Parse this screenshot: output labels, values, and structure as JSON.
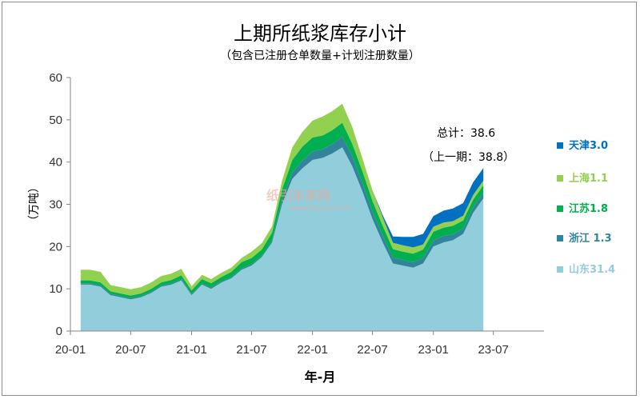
{
  "chart_data": {
    "type": "area",
    "stacked": true,
    "title": "上期所纸浆库存小计",
    "subtitle": "（包含已注册仓单数量+计划注册数量）",
    "xlabel": "年-月",
    "ylabel": "（万吨）",
    "ylim": [
      0,
      60
    ],
    "yticks": [
      0,
      10,
      20,
      30,
      40,
      50,
      60
    ],
    "xticks": [
      "20-01",
      "20-07",
      "21-01",
      "21-07",
      "22-01",
      "22-07",
      "23-01",
      "23-07"
    ],
    "grid": false,
    "legend_position": "right",
    "annotations": [
      "总计：38.6",
      "（上一期：38.8）"
    ],
    "watermark": "纸引未来网 www.51zywl.com",
    "x": [
      "2020-02",
      "2020-03",
      "2020-04",
      "2020-05",
      "2020-06",
      "2020-07",
      "2020-08",
      "2020-09",
      "2020-10",
      "2020-11",
      "2020-12",
      "2021-01",
      "2021-02",
      "2021-03",
      "2021-04",
      "2021-05",
      "2021-06",
      "2021-07",
      "2021-08",
      "2021-09",
      "2021-10",
      "2021-11",
      "2021-12",
      "2022-01",
      "2022-02",
      "2022-03",
      "2022-04",
      "2022-05",
      "2022-06",
      "2022-07",
      "2022-08",
      "2022-09",
      "2022-10",
      "2022-11",
      "2022-12",
      "2023-01",
      "2023-02",
      "2023-03",
      "2023-04",
      "2023-05",
      "2023-06"
    ],
    "series": [
      {
        "name": "山东31.4",
        "color": "#92cddc",
        "values": [
          11,
          11,
          10.5,
          8.5,
          8,
          7.5,
          8,
          9,
          10.5,
          11,
          12,
          8.5,
          11,
          10,
          11.5,
          12.5,
          14.5,
          15.5,
          17.5,
          21,
          30,
          36,
          38.5,
          40.5,
          41,
          42,
          43.5,
          39,
          33,
          26.5,
          21,
          16,
          15.5,
          15,
          16,
          20,
          21,
          21.5,
          23,
          28,
          31.4
        ]
      },
      {
        "name": "浙江 1.3",
        "color": "#31849b",
        "values": [
          0.3,
          0.3,
          0.3,
          0.3,
          0.3,
          0.3,
          0.3,
          0.3,
          0.3,
          0.3,
          0.3,
          0.3,
          0.3,
          0.3,
          0.3,
          0.3,
          0.3,
          0.3,
          0.3,
          0.5,
          1,
          1.5,
          1.8,
          2,
          2,
          2.2,
          2.5,
          2.3,
          2,
          1.8,
          1.6,
          1.4,
          1.3,
          1.3,
          1.3,
          1.5,
          1.5,
          1.4,
          1.3,
          1.3,
          1.3
        ]
      },
      {
        "name": "江苏1.8",
        "color": "#00b050",
        "values": [
          0.7,
          0.7,
          0.7,
          0.6,
          0.6,
          0.6,
          0.6,
          0.7,
          0.7,
          0.8,
          0.9,
          0.8,
          1,
          1,
          1,
          1.2,
          1.5,
          1.5,
          1.5,
          1.8,
          2.5,
          3,
          3.3,
          3.3,
          3.3,
          3.3,
          3.3,
          3,
          2.8,
          2.5,
          2.3,
          2,
          2,
          2,
          2,
          2,
          2,
          2,
          1.9,
          1.8,
          1.8
        ]
      },
      {
        "name": "上海1.1",
        "color": "#92d050",
        "values": [
          2.5,
          2.5,
          2.5,
          1.5,
          1.5,
          1.5,
          1.5,
          1.5,
          1.5,
          1.5,
          1.5,
          1,
          1,
          1,
          1,
          1,
          1,
          1.5,
          1.5,
          1.5,
          2,
          3,
          3.5,
          4,
          4.5,
          4.5,
          4.5,
          4,
          3,
          2.5,
          2,
          1.5,
          1.5,
          1.5,
          1.2,
          1.2,
          1.2,
          1.1,
          1.1,
          1.1,
          1.1
        ]
      },
      {
        "name": "天津3.0",
        "color": "#0070c0",
        "values": [
          0,
          0,
          0,
          0,
          0,
          0,
          0,
          0,
          0,
          0,
          0,
          0,
          0,
          0,
          0,
          0,
          0,
          0,
          0,
          0,
          0,
          0,
          0,
          0,
          0,
          0,
          0,
          0,
          0,
          0,
          0.5,
          1.5,
          2,
          2.5,
          2.5,
          2.5,
          2.8,
          3,
          3,
          3,
          3.0
        ]
      }
    ]
  }
}
